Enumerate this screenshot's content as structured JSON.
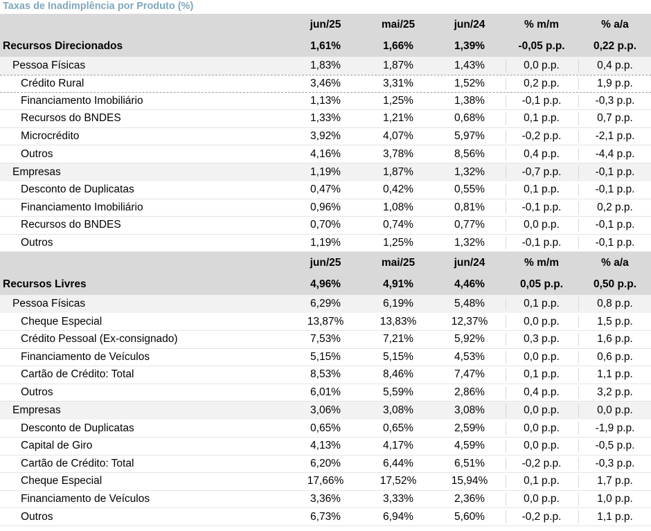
{
  "title": "Taxas de Inadimplência por Produto (%)",
  "columns": [
    "jun/25",
    "mai/25",
    "jun/24",
    "% m/m",
    "% a/a"
  ],
  "sections": [
    {
      "name": "Recursos Direcionados",
      "values": [
        "1,61%",
        "1,66%",
        "1,39%",
        "-0,05 p.p.",
        "0,22 p.p."
      ],
      "groups": [
        {
          "name": "Pessoa Físicas",
          "values": [
            "1,83%",
            "1,87%",
            "1,43%",
            "0,0 p.p.",
            "0,4 p.p."
          ],
          "items": [
            {
              "name": "Crédito Rural",
              "values": [
                "3,46%",
                "3,31%",
                "1,52%",
                "0,2 p.p.",
                "1,9 p.p."
              ],
              "highlight": true
            },
            {
              "name": "Financiamento Imobiliário",
              "values": [
                "1,13%",
                "1,25%",
                "1,38%",
                "-0,1 p.p.",
                "-0,3 p.p."
              ]
            },
            {
              "name": "Recursos do BNDES",
              "values": [
                "1,33%",
                "1,21%",
                "0,68%",
                "0,1 p.p.",
                "0,7 p.p."
              ]
            },
            {
              "name": "Microcrédito",
              "values": [
                "3,92%",
                "4,07%",
                "5,97%",
                "-0,2 p.p.",
                "-2,1 p.p."
              ]
            },
            {
              "name": "Outros",
              "values": [
                "4,16%",
                "3,78%",
                "8,56%",
                "0,4 p.p.",
                "-4,4 p.p."
              ]
            }
          ]
        },
        {
          "name": "Empresas",
          "values": [
            "1,19%",
            "1,87%",
            "1,32%",
            "-0,7 p.p.",
            "-0,1 p.p."
          ],
          "items": [
            {
              "name": "Desconto de Duplicatas",
              "values": [
                "0,47%",
                "0,42%",
                "0,55%",
                "0,1 p.p.",
                "-0,1 p.p."
              ]
            },
            {
              "name": "Financiamento Imobiliário",
              "values": [
                "0,96%",
                "1,08%",
                "0,81%",
                "-0,1 p.p.",
                "0,2 p.p."
              ]
            },
            {
              "name": "Recursos do BNDES",
              "values": [
                "0,70%",
                "0,74%",
                "0,77%",
                "0,0 p.p.",
                "-0,1 p.p."
              ]
            },
            {
              "name": "Outros",
              "values": [
                "1,19%",
                "1,25%",
                "1,32%",
                "-0,1 p.p.",
                "-0,1 p.p."
              ]
            }
          ]
        }
      ]
    },
    {
      "name": "Recursos Livres",
      "values": [
        "4,96%",
        "4,91%",
        "4,46%",
        "0,05 p.p.",
        "0,50 p.p."
      ],
      "groups": [
        {
          "name": "Pessoa Físicas",
          "values": [
            "6,29%",
            "6,19%",
            "5,48%",
            "0,1 p.p.",
            "0,8 p.p."
          ],
          "items": [
            {
              "name": "Cheque Especial",
              "values": [
                "13,87%",
                "13,83%",
                "12,37%",
                "0,0 p.p.",
                "1,5 p.p."
              ]
            },
            {
              "name": "Crédito Pessoal (Ex-consignado)",
              "values": [
                "7,53%",
                "7,21%",
                "5,92%",
                "0,3 p.p.",
                "1,6 p.p."
              ]
            },
            {
              "name": "Financiamento de Veículos",
              "values": [
                "5,15%",
                "5,15%",
                "4,53%",
                "0,0 p.p.",
                "0,6 p.p."
              ]
            },
            {
              "name": "Cartão de Crédito: Total",
              "values": [
                "8,53%",
                "8,46%",
                "7,47%",
                "0,1 p.p.",
                "1,1 p.p."
              ]
            },
            {
              "name": "Outros",
              "values": [
                "6,01%",
                "5,59%",
                "2,86%",
                "0,4 p.p.",
                "3,2 p.p."
              ]
            }
          ]
        },
        {
          "name": "Empresas",
          "values": [
            "3,06%",
            "3,08%",
            "3,08%",
            "0,0 p.p.",
            "0,0 p.p."
          ],
          "items": [
            {
              "name": "Desconto de Duplicatas",
              "values": [
                "0,65%",
                "0,65%",
                "2,59%",
                "0,0 p.p.",
                "-1,9 p.p."
              ]
            },
            {
              "name": "Capital de Giro",
              "values": [
                "4,13%",
                "4,17%",
                "4,59%",
                "0,0 p.p.",
                "-0,5 p.p."
              ]
            },
            {
              "name": "Cartão de Crédito: Total",
              "values": [
                "6,20%",
                "6,44%",
                "6,51%",
                "-0,2 p.p.",
                "-0,3 p.p."
              ]
            },
            {
              "name": "Cheque Especial",
              "values": [
                "17,66%",
                "17,52%",
                "15,94%",
                "0,1 p.p.",
                "1,7 p.p."
              ]
            },
            {
              "name": "Financiamento de Veículos",
              "values": [
                "3,36%",
                "3,33%",
                "2,36%",
                "0,0 p.p.",
                "1,0 p.p."
              ]
            },
            {
              "name": "Outros",
              "values": [
                "6,73%",
                "6,94%",
                "5,60%",
                "-0,2 p.p.",
                "1,1 p.p."
              ]
            }
          ]
        }
      ]
    }
  ]
}
